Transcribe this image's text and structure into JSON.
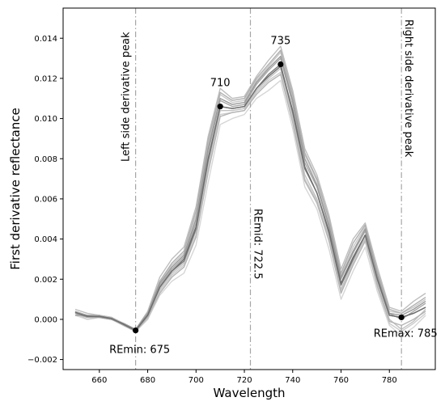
{
  "chart_data": {
    "type": "line",
    "title": "",
    "xlabel": "Wavelength",
    "ylabel": "First derivative reflectance",
    "xlim": [
      645,
      799
    ],
    "ylim": [
      -0.0025,
      0.0155
    ],
    "xticks": [
      660,
      680,
      700,
      720,
      740,
      760,
      780
    ],
    "xtick_labels": [
      "660",
      "680",
      "700",
      "720",
      "740",
      "760",
      "780"
    ],
    "yticks": [
      -0.002,
      0.0,
      0.002,
      0.004,
      0.006,
      0.008,
      0.01,
      0.012,
      0.014
    ],
    "ytick_labels": [
      "−0.002",
      "0.000",
      "0.002",
      "0.004",
      "0.006",
      "0.008",
      "0.010",
      "0.012",
      "0.014"
    ],
    "grid": false,
    "x": [
      650,
      655,
      660,
      665,
      670,
      675,
      680,
      685,
      690,
      695,
      700,
      705,
      710,
      715,
      720,
      725,
      730,
      735,
      740,
      745,
      750,
      755,
      760,
      765,
      770,
      775,
      780,
      785,
      790,
      795
    ],
    "series": [
      {
        "values": [
          0.00035,
          0.00015,
          0.00015,
          5e-05,
          -0.00025,
          -0.00055,
          0.0002,
          0.0016,
          0.0024,
          0.0029,
          0.0045,
          0.0079,
          0.0106,
          0.0105,
          0.0106,
          0.0115,
          0.0122,
          0.0127,
          0.0103,
          0.0075,
          0.0063,
          0.0043,
          0.0017,
          0.003,
          0.0042,
          0.002,
          0.0002,
          0.0001,
          0.0003,
          0.0006
        ]
      },
      {
        "values": [
          0.0004,
          0.0002,
          0.0002,
          0.0001,
          -0.0002,
          -0.0005,
          0.0003,
          0.0019,
          0.0027,
          0.0033,
          0.0052,
          0.0087,
          0.0112,
          0.0108,
          0.0109,
          0.0119,
          0.0126,
          0.0133,
          0.0111,
          0.0082,
          0.0069,
          0.0049,
          0.0022,
          0.0036,
          0.0046,
          0.0023,
          0.0004,
          0.0003,
          0.0006,
          0.001
        ]
      },
      {
        "values": [
          0.0003,
          0.0001,
          0.0001,
          0.0,
          -0.0003,
          -0.0006,
          0.0001,
          0.0013,
          0.0021,
          0.0026,
          0.0041,
          0.0073,
          0.0101,
          0.0103,
          0.0104,
          0.0112,
          0.0118,
          0.0122,
          0.0098,
          0.0069,
          0.0058,
          0.0039,
          0.0013,
          0.0027,
          0.0039,
          0.0017,
          -0.0001,
          -0.0003,
          0.0,
          0.0004
        ]
      },
      {
        "values": [
          0.0002,
          0.0,
          0.0001,
          0.0,
          -0.0003,
          -0.0006,
          0.0,
          0.0012,
          0.0019,
          0.0023,
          0.0037,
          0.0068,
          0.0097,
          0.01,
          0.0102,
          0.011,
          0.0114,
          0.0119,
          0.0095,
          0.0066,
          0.0055,
          0.0035,
          0.001,
          0.0024,
          0.0036,
          0.0014,
          -0.0003,
          -0.0008,
          -0.0004,
          0.0002
        ]
      },
      {
        "values": [
          0.0005,
          0.0003,
          0.0002,
          0.0001,
          -0.0002,
          -0.0005,
          0.0004,
          0.0021,
          0.003,
          0.0036,
          0.0056,
          0.0091,
          0.0115,
          0.011,
          0.0111,
          0.0121,
          0.0129,
          0.0136,
          0.0114,
          0.0085,
          0.0072,
          0.0052,
          0.0025,
          0.004,
          0.0048,
          0.0026,
          0.0006,
          0.0004,
          0.0009,
          0.0013
        ]
      },
      {
        "values": [
          0.0003,
          0.0001,
          0.0001,
          0.0,
          -0.0002,
          -0.0005,
          0.0002,
          0.0017,
          0.0025,
          0.0031,
          0.0048,
          0.0083,
          0.0109,
          0.0106,
          0.0107,
          0.0117,
          0.0124,
          0.013,
          0.0107,
          0.0078,
          0.0066,
          0.0046,
          0.002,
          0.0033,
          0.0044,
          0.0021,
          0.0003,
          0.0,
          0.0004,
          0.0008
        ]
      },
      {
        "values": [
          0.0004,
          0.0001,
          0.0002,
          0.0001,
          -0.0003,
          -0.0006,
          0.0001,
          0.0015,
          0.0023,
          0.0028,
          0.0044,
          0.0077,
          0.0104,
          0.0104,
          0.0105,
          0.0114,
          0.012,
          0.0125,
          0.0101,
          0.0072,
          0.006,
          0.0041,
          0.0015,
          0.0029,
          0.004,
          0.0018,
          0.0,
          -0.0005,
          -0.0001,
          0.0005
        ]
      },
      {
        "values": [
          0.0002,
          0.0002,
          0.0001,
          0.0,
          -0.0002,
          -0.0005,
          0.0003,
          0.0018,
          0.0026,
          0.0032,
          0.005,
          0.0085,
          0.011,
          0.0107,
          0.0108,
          0.0118,
          0.0125,
          0.0131,
          0.0109,
          0.008,
          0.0067,
          0.0047,
          0.0021,
          0.0034,
          0.0045,
          0.0022,
          0.0003,
          0.0002,
          0.0005,
          0.0009
        ]
      },
      {
        "values": [
          0.0003,
          0.0,
          0.0001,
          0.0001,
          -0.0003,
          -0.0006,
          0.0,
          0.0014,
          0.0022,
          0.0027,
          0.0042,
          0.0075,
          0.0102,
          0.0103,
          0.0104,
          0.0113,
          0.0119,
          0.0123,
          0.0099,
          0.007,
          0.0059,
          0.004,
          0.0014,
          0.0028,
          0.0041,
          0.0016,
          -0.0002,
          -0.0006,
          -0.0002,
          0.0003
        ]
      },
      {
        "values": [
          0.0004,
          0.0002,
          0.0002,
          0.0,
          -0.0002,
          -0.0005,
          0.0003,
          0.0019,
          0.0028,
          0.0034,
          0.0054,
          0.0089,
          0.0113,
          0.0109,
          0.011,
          0.012,
          0.0127,
          0.0134,
          0.0112,
          0.0083,
          0.007,
          0.005,
          0.0023,
          0.0038,
          0.0047,
          0.0024,
          0.0005,
          0.0003,
          0.0007,
          0.0011
        ]
      },
      {
        "values": [
          0.00035,
          0.00015,
          0.00015,
          5e-05,
          -0.00025,
          -0.00055,
          0.0002,
          0.0016,
          0.0024,
          0.003,
          0.0046,
          0.008,
          0.0106,
          0.0105,
          0.0106,
          0.0115,
          0.0121,
          0.0126,
          0.0104,
          0.0076,
          0.0063,
          0.0044,
          0.0018,
          0.0031,
          0.0042,
          0.002,
          0.0002,
          0.0001,
          0.0003,
          0.0006
        ]
      }
    ],
    "series_colors": [
      "#7a7a7a",
      "#c8c8c8",
      "#b4b4b4",
      "#d6d6d6",
      "#bebebe",
      "#a8a8a8",
      "#c2c2c2",
      "#9a9a9a",
      "#cccccc",
      "#b0b0b0",
      "#6e6e6e"
    ],
    "vlines": [
      {
        "x": 675,
        "label": "Left side derivative peak"
      },
      {
        "x": 722.5,
        "label": "REmid: 722.5"
      },
      {
        "x": 785,
        "label": "Right side derivative peak"
      }
    ],
    "markers": [
      {
        "x": 675,
        "y": -0.00055
      },
      {
        "x": 710,
        "y": 0.0106
      },
      {
        "x": 735,
        "y": 0.0127
      },
      {
        "x": 785,
        "y": 0.0001
      }
    ],
    "annotations": [
      {
        "x": 710,
        "y": 0.0106,
        "text": "710"
      },
      {
        "x": 735,
        "y": 0.0127,
        "text": "735"
      },
      {
        "x": 675,
        "y": -0.00055,
        "text": "REmin: 675"
      },
      {
        "x": 785,
        "y": 0.0001,
        "text": "REmax: 785"
      }
    ],
    "colors": {
      "vline": "#a6a6a6",
      "marker": "#000000",
      "axis": "#000000"
    }
  }
}
